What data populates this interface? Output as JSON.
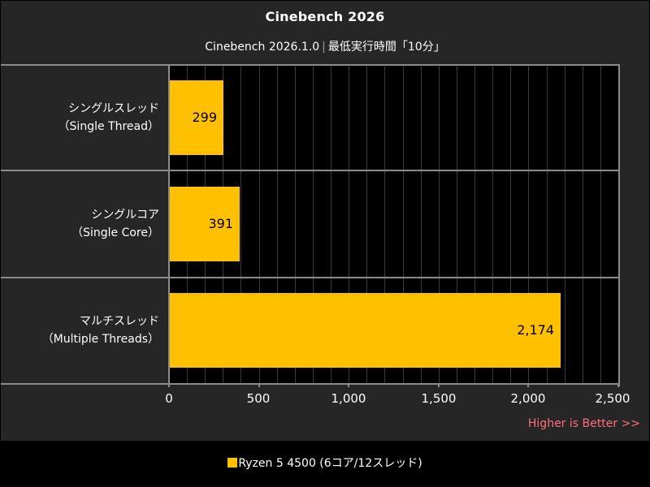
{
  "header": {
    "title": "Cinebench 2026",
    "subtitle_left": "Cinebench 2026.1.0",
    "subtitle_sep": "|",
    "subtitle_right": "最低実行時間「10分」"
  },
  "categories": [
    {
      "line1": "シングルスレッド",
      "line2": "（Single Thread）",
      "value": 299,
      "value_label": "299"
    },
    {
      "line1": "シングルコア",
      "line2": "（Single Core）",
      "value": 391,
      "value_label": "391"
    },
    {
      "line1": "マルチスレッド",
      "line2": "（Multiple Threads）",
      "value": 2174,
      "value_label": "2,174"
    }
  ],
  "axis": {
    "ticks": [
      "0",
      "500",
      "1,000",
      "1,500",
      "2,000",
      "2,500"
    ],
    "min": 0,
    "max": 2500
  },
  "note": "Higher is Better >>",
  "legend": {
    "label": "Ryzen 5 4500 (6コア/12スレッド)",
    "color": "#ffc000"
  },
  "colors": {
    "bar": "#ffc000",
    "note": "#ff6e7a",
    "panel": "#262626",
    "plot_bg": "#000000"
  },
  "chart_data": {
    "type": "bar",
    "orientation": "horizontal",
    "title": "Cinebench 2026",
    "subtitle": "Cinebench 2026.1.0 | 最低実行時間「10分」",
    "categories": [
      "シングルスレッド（Single Thread）",
      "シングルコア（Single Core）",
      "マルチスレッド（Multiple Threads）"
    ],
    "series": [
      {
        "name": "Ryzen 5 4500 (6コア/12スレッド)",
        "color": "#ffc000",
        "values": [
          299,
          391,
          2174
        ]
      }
    ],
    "xlabel": "",
    "ylabel": "",
    "xlim": [
      0,
      2500
    ],
    "xticks": [
      0,
      500,
      1000,
      1500,
      2000,
      2500
    ],
    "grid": true,
    "grid_minor_step": 100,
    "annotation": "Higher is Better >>",
    "legend_position": "bottom"
  }
}
